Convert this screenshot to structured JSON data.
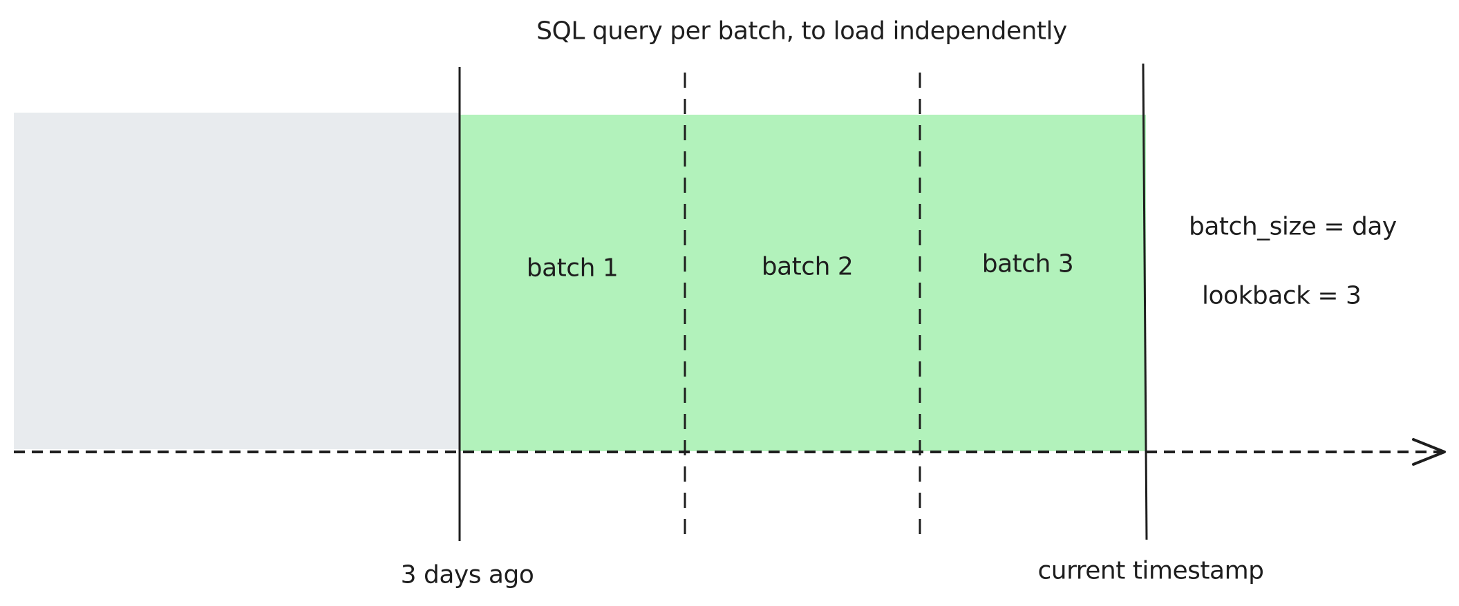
{
  "title": "SQL query per batch, to load independently",
  "batches": [
    {
      "label": "batch 1"
    },
    {
      "label": "batch 2"
    },
    {
      "label": "batch 3"
    }
  ],
  "params": {
    "batch_size": "batch_size = day",
    "lookback": "lookback = 3"
  },
  "axis_labels": {
    "start": "3 days ago",
    "end": "current timestamp"
  },
  "colors": {
    "past_region": "#e8ebee",
    "batch_region": "#b2f2bb",
    "stroke": "#1e1e1e"
  }
}
